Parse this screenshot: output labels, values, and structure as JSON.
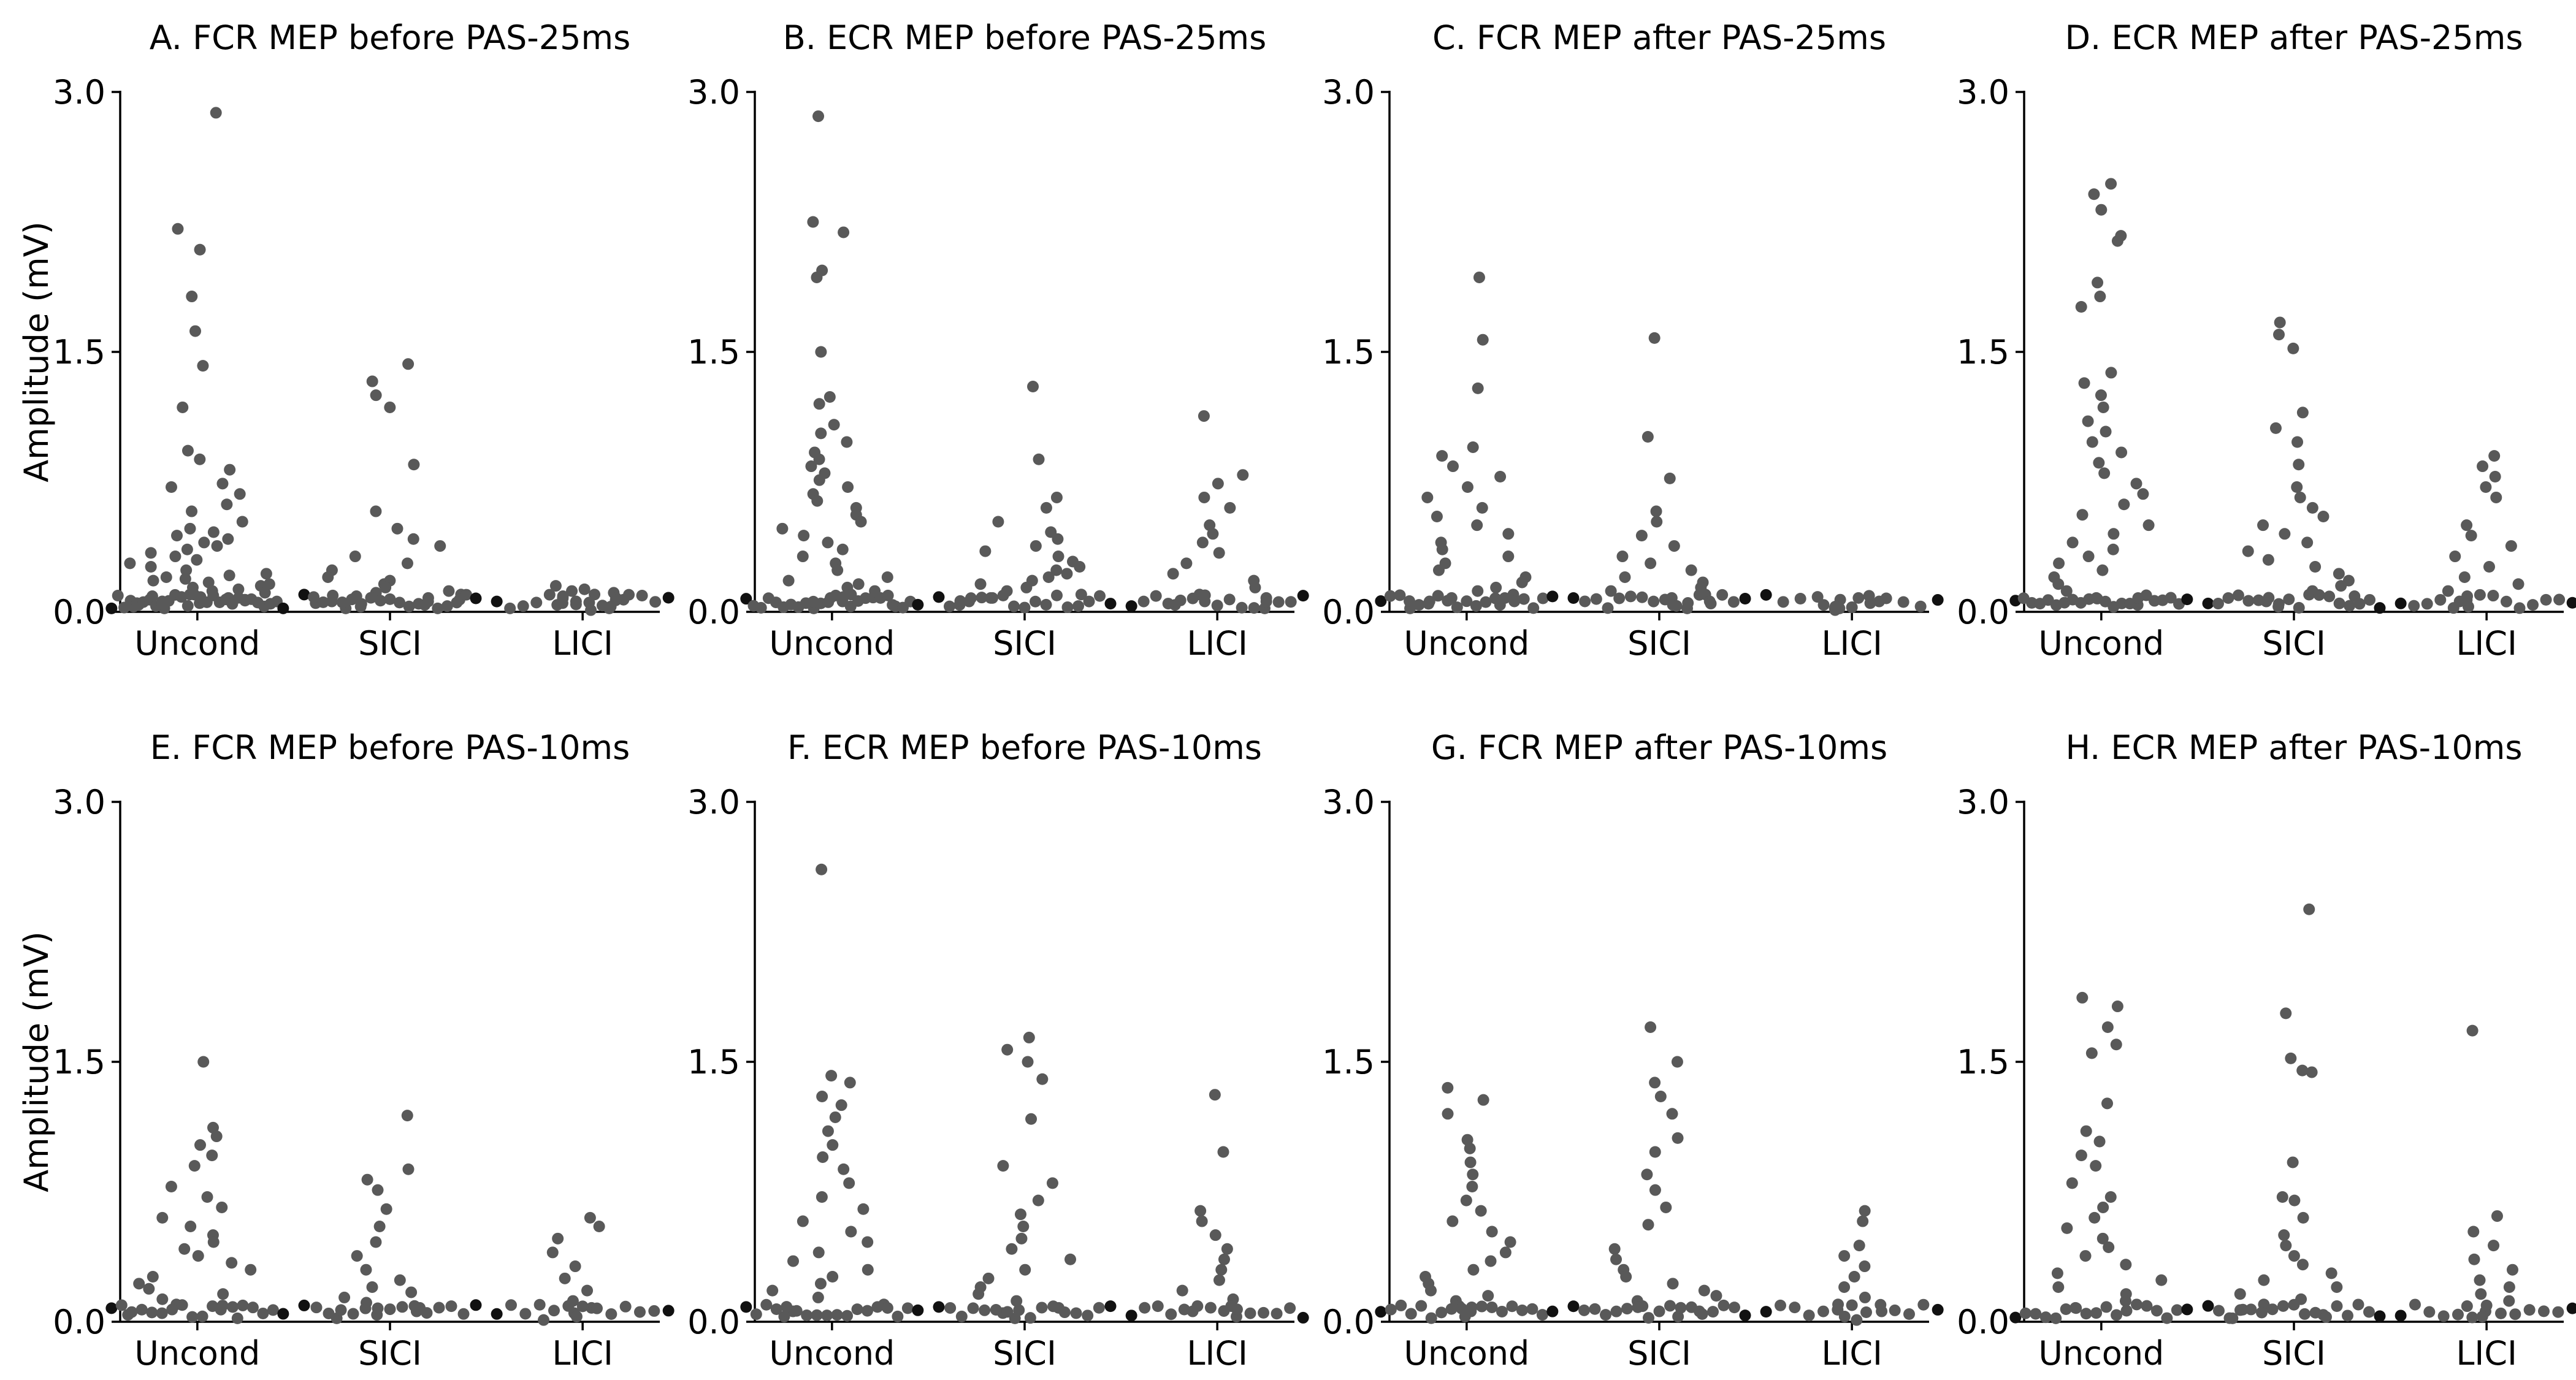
{
  "figure": {
    "ylabel": "Amplitude (mV)"
  },
  "chart_data": [
    {
      "type": "scatter",
      "id": "A",
      "title": "A. FCR MEP before PAS-25ms",
      "categories": [
        "Uncond",
        "SICI",
        "LICI"
      ],
      "ylim": [
        0,
        3.0
      ],
      "yticks": [
        "0.0",
        "1.5",
        "3.0"
      ],
      "ylabel": "Amplitude (mV)",
      "series": [
        {
          "name": "Uncond",
          "values": [
            2.88,
            2.21,
            2.09,
            1.82,
            1.62,
            1.42,
            1.18,
            0.93,
            0.88,
            0.82,
            0.74,
            0.72,
            0.68,
            0.62,
            0.58,
            0.52,
            0.48,
            0.46,
            0.44,
            0.42,
            0.4,
            0.38,
            0.36,
            0.34,
            0.32,
            0.3,
            0.28,
            0.26,
            0.24,
            0.22,
            0.21,
            0.2,
            0.19,
            0.18,
            0.17,
            0.16,
            0.15,
            0.14,
            0.13,
            0.12,
            0.11,
            0.1,
            0.09,
            0.08,
            0.07,
            0.06,
            0.05,
            0.04,
            0.03,
            0.02
          ]
        },
        {
          "name": "SICI",
          "values": [
            1.43,
            1.33,
            1.25,
            1.18,
            0.85,
            0.58,
            0.48,
            0.42,
            0.38,
            0.32,
            0.28,
            0.24,
            0.2,
            0.18,
            0.16,
            0.14,
            0.12,
            0.11,
            0.1,
            0.09,
            0.08,
            0.07,
            0.06,
            0.05,
            0.04,
            0.03,
            0.02
          ]
        },
        {
          "name": "LICI",
          "values": [
            0.15,
            0.13,
            0.12,
            0.11,
            0.1,
            0.09,
            0.08,
            0.07,
            0.06,
            0.05,
            0.04,
            0.03,
            0.02,
            0.01
          ]
        }
      ]
    },
    {
      "type": "scatter",
      "id": "B",
      "title": "B. ECR MEP before PAS-25ms",
      "categories": [
        "Uncond",
        "SICI",
        "LICI"
      ],
      "ylim": [
        0,
        3.0
      ],
      "yticks": [
        "0.0",
        "1.5",
        "3.0"
      ],
      "ylabel": "",
      "series": [
        {
          "name": "Uncond",
          "values": [
            2.86,
            2.25,
            2.19,
            1.97,
            1.93,
            1.5,
            1.24,
            1.2,
            1.08,
            1.03,
            0.98,
            0.92,
            0.88,
            0.84,
            0.8,
            0.76,
            0.72,
            0.68,
            0.64,
            0.6,
            0.56,
            0.52,
            0.48,
            0.44,
            0.4,
            0.36,
            0.32,
            0.28,
            0.24,
            0.2,
            0.18,
            0.16,
            0.14,
            0.12,
            0.1,
            0.08,
            0.06,
            0.04,
            0.02
          ]
        },
        {
          "name": "SICI",
          "values": [
            1.3,
            0.88,
            0.66,
            0.6,
            0.52,
            0.46,
            0.42,
            0.38,
            0.35,
            0.32,
            0.29,
            0.26,
            0.24,
            0.22,
            0.2,
            0.18,
            0.16,
            0.14,
            0.12,
            0.1,
            0.08,
            0.06,
            0.04
          ]
        },
        {
          "name": "LICI",
          "values": [
            1.13,
            0.79,
            0.74,
            0.66,
            0.6,
            0.5,
            0.45,
            0.4,
            0.34,
            0.28,
            0.22,
            0.18,
            0.14,
            0.1,
            0.08,
            0.06,
            0.04,
            0.02
          ]
        }
      ]
    },
    {
      "type": "scatter",
      "id": "C",
      "title": "C. FCR MEP after PAS-25ms",
      "categories": [
        "Uncond",
        "SICI",
        "LICI"
      ],
      "ylim": [
        0,
        3.0
      ],
      "yticks": [
        "0.0",
        "1.5",
        "3.0"
      ],
      "ylabel": "",
      "series": [
        {
          "name": "Uncond",
          "values": [
            1.93,
            1.57,
            1.29,
            0.95,
            0.9,
            0.84,
            0.78,
            0.72,
            0.66,
            0.6,
            0.55,
            0.5,
            0.45,
            0.4,
            0.36,
            0.32,
            0.28,
            0.24,
            0.2,
            0.17,
            0.14,
            0.12,
            0.1,
            0.08,
            0.06,
            0.04,
            0.02
          ]
        },
        {
          "name": "SICI",
          "values": [
            1.58,
            1.01,
            0.77,
            0.58,
            0.52,
            0.44,
            0.38,
            0.32,
            0.28,
            0.24,
            0.2,
            0.17,
            0.14,
            0.12,
            0.1,
            0.08,
            0.06,
            0.04,
            0.02
          ]
        },
        {
          "name": "LICI",
          "values": [
            0.08,
            0.07,
            0.06,
            0.05,
            0.04,
            0.03,
            0.02,
            0.01
          ]
        }
      ]
    },
    {
      "type": "scatter",
      "id": "D",
      "title": "D. ECR MEP after PAS-25ms",
      "categories": [
        "Uncond",
        "SICI",
        "LICI"
      ],
      "ylim": [
        0,
        3.0
      ],
      "yticks": [
        "0.0",
        "1.5",
        "3.0"
      ],
      "ylabel": "",
      "series": [
        {
          "name": "Uncond",
          "values": [
            2.47,
            2.41,
            2.32,
            2.17,
            2.14,
            1.9,
            1.82,
            1.76,
            1.38,
            1.32,
            1.25,
            1.18,
            1.1,
            1.04,
            0.98,
            0.92,
            0.86,
            0.8,
            0.74,
            0.68,
            0.62,
            0.56,
            0.5,
            0.45,
            0.4,
            0.36,
            0.32,
            0.28,
            0.24,
            0.2,
            0.16,
            0.12,
            0.08,
            0.04
          ]
        },
        {
          "name": "SICI",
          "values": [
            1.67,
            1.6,
            1.52,
            1.15,
            1.06,
            0.98,
            0.85,
            0.72,
            0.66,
            0.6,
            0.55,
            0.5,
            0.45,
            0.4,
            0.35,
            0.3,
            0.26,
            0.22,
            0.18,
            0.15,
            0.12,
            0.09,
            0.06,
            0.03
          ]
        },
        {
          "name": "LICI",
          "values": [
            0.9,
            0.84,
            0.78,
            0.72,
            0.66,
            0.5,
            0.44,
            0.38,
            0.32,
            0.26,
            0.2,
            0.16,
            0.12,
            0.09,
            0.06,
            0.03
          ]
        }
      ]
    },
    {
      "type": "scatter",
      "id": "E",
      "title": "E. FCR MEP before PAS-10ms",
      "categories": [
        "Uncond",
        "SICI",
        "LICI"
      ],
      "ylim": [
        0,
        3.0
      ],
      "yticks": [
        "0.0",
        "1.5",
        "3.0"
      ],
      "ylabel": "Amplitude (mV)",
      "series": [
        {
          "name": "Uncond",
          "values": [
            1.5,
            1.12,
            1.07,
            1.02,
            0.96,
            0.9,
            0.78,
            0.72,
            0.66,
            0.6,
            0.55,
            0.5,
            0.46,
            0.42,
            0.38,
            0.34,
            0.3,
            0.26,
            0.22,
            0.19,
            0.16,
            0.13,
            0.1,
            0.07,
            0.04,
            0.02
          ]
        },
        {
          "name": "SICI",
          "values": [
            1.19,
            0.88,
            0.82,
            0.76,
            0.65,
            0.55,
            0.46,
            0.38,
            0.3,
            0.24,
            0.2,
            0.17,
            0.14,
            0.11,
            0.08,
            0.06,
            0.04,
            0.02
          ]
        },
        {
          "name": "LICI",
          "values": [
            0.6,
            0.55,
            0.48,
            0.4,
            0.32,
            0.25,
            0.18,
            0.12,
            0.08,
            0.05,
            0.03,
            0.01
          ]
        }
      ]
    },
    {
      "type": "scatter",
      "id": "F",
      "title": "F. ECR MEP before PAS-10ms",
      "categories": [
        "Uncond",
        "SICI",
        "LICI"
      ],
      "ylim": [
        0,
        3.0
      ],
      "yticks": [
        "0.0",
        "1.5",
        "3.0"
      ],
      "ylabel": "",
      "series": [
        {
          "name": "Uncond",
          "values": [
            2.61,
            1.42,
            1.38,
            1.3,
            1.25,
            1.18,
            1.1,
            1.02,
            0.95,
            0.88,
            0.8,
            0.72,
            0.65,
            0.58,
            0.52,
            0.46,
            0.4,
            0.35,
            0.3,
            0.26,
            0.22,
            0.18,
            0.14,
            0.1,
            0.06,
            0.03
          ]
        },
        {
          "name": "SICI",
          "values": [
            1.64,
            1.57,
            1.5,
            1.4,
            1.17,
            0.9,
            0.8,
            0.7,
            0.62,
            0.55,
            0.48,
            0.42,
            0.36,
            0.3,
            0.25,
            0.2,
            0.16,
            0.12,
            0.08,
            0.05,
            0.02
          ]
        },
        {
          "name": "LICI",
          "values": [
            1.31,
            0.98,
            0.64,
            0.58,
            0.5,
            0.42,
            0.36,
            0.3,
            0.24,
            0.18,
            0.13,
            0.09,
            0.06,
            0.03
          ]
        }
      ]
    },
    {
      "type": "scatter",
      "id": "G",
      "title": "G. FCR MEP after PAS-10ms",
      "categories": [
        "Uncond",
        "SICI",
        "LICI"
      ],
      "ylim": [
        0,
        3.0
      ],
      "yticks": [
        "0.0",
        "1.5",
        "3.0"
      ],
      "ylabel": "",
      "series": [
        {
          "name": "Uncond",
          "values": [
            1.35,
            1.28,
            1.2,
            1.05,
            1.0,
            0.92,
            0.85,
            0.78,
            0.7,
            0.64,
            0.58,
            0.52,
            0.46,
            0.4,
            0.35,
            0.3,
            0.26,
            0.22,
            0.18,
            0.15,
            0.12,
            0.09,
            0.06,
            0.03
          ]
        },
        {
          "name": "SICI",
          "values": [
            1.7,
            1.5,
            1.38,
            1.3,
            1.2,
            1.06,
            0.98,
            0.85,
            0.76,
            0.66,
            0.56,
            0.42,
            0.36,
            0.3,
            0.26,
            0.22,
            0.18,
            0.15,
            0.12,
            0.09,
            0.06,
            0.03
          ]
        },
        {
          "name": "LICI",
          "values": [
            0.64,
            0.58,
            0.44,
            0.38,
            0.32,
            0.26,
            0.2,
            0.14,
            0.1,
            0.06,
            0.03,
            0.01
          ]
        }
      ]
    },
    {
      "type": "scatter",
      "id": "H",
      "title": "H. ECR MEP after PAS-10ms",
      "categories": [
        "Uncond",
        "SICI",
        "LICI"
      ],
      "ylim": [
        0,
        3.0
      ],
      "yticks": [
        "0.0",
        "1.5",
        "3.0"
      ],
      "ylabel": "",
      "series": [
        {
          "name": "Uncond",
          "values": [
            1.87,
            1.82,
            1.7,
            1.6,
            1.55,
            1.26,
            1.1,
            1.04,
            0.96,
            0.9,
            0.8,
            0.72,
            0.66,
            0.6,
            0.54,
            0.48,
            0.43,
            0.38,
            0.33,
            0.28,
            0.24,
            0.2,
            0.16,
            0.12,
            0.08
          ]
        },
        {
          "name": "SICI",
          "values": [
            2.38,
            1.78,
            1.52,
            1.45,
            1.44,
            0.92,
            0.72,
            0.7,
            0.6,
            0.5,
            0.44,
            0.38,
            0.33,
            0.28,
            0.24,
            0.2,
            0.16,
            0.13,
            0.1,
            0.07,
            0.04,
            0.02
          ]
        },
        {
          "name": "LICI",
          "values": [
            1.68,
            0.61,
            0.52,
            0.44,
            0.36,
            0.3,
            0.24,
            0.2,
            0.16,
            0.12,
            0.09,
            0.06,
            0.03
          ]
        }
      ]
    }
  ]
}
